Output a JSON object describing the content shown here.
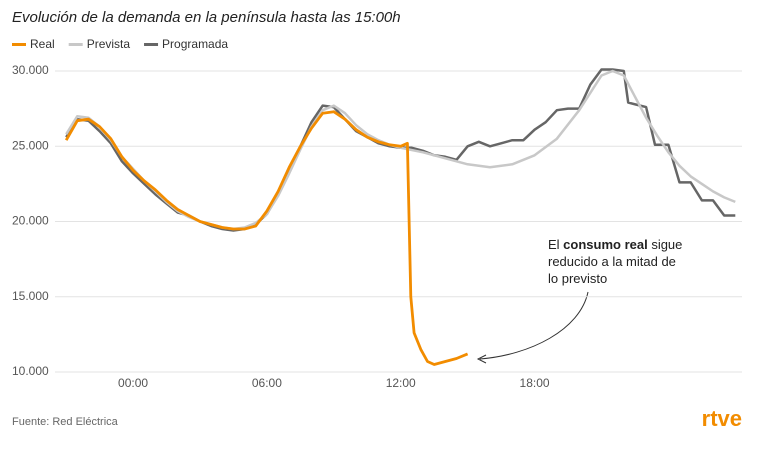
{
  "chart_data": {
    "type": "line",
    "title": "Evolución de la demanda en la península hasta las 15:00h",
    "series": [
      {
        "name": "Real",
        "color": "#f28c00",
        "x": [
          -3,
          -2.5,
          -2,
          -1.5,
          -1,
          -0.5,
          0,
          0.5,
          1,
          1.5,
          2,
          2.5,
          3,
          3.5,
          4,
          4.5,
          5,
          5.5,
          6,
          6.5,
          7,
          7.5,
          8,
          8.5,
          9,
          9.5,
          10,
          10.5,
          11,
          11.5,
          12,
          12.3,
          12.45,
          12.6,
          12.9,
          13.2,
          13.5,
          14,
          14.5,
          15
        ],
        "values": [
          25400,
          26700,
          26800,
          26300,
          25500,
          24300,
          23400,
          22700,
          22100,
          21400,
          20800,
          20400,
          20000,
          19800,
          19600,
          19500,
          19500,
          19700,
          20700,
          22000,
          23600,
          25000,
          26200,
          27200,
          27300,
          26800,
          26100,
          25600,
          25300,
          25100,
          25000,
          25200,
          15000,
          12600,
          11500,
          10700,
          10500,
          10700,
          10900,
          11200
        ]
      },
      {
        "name": "Prevista",
        "color": "#c8c8c8",
        "x": [
          -3,
          -2.5,
          -2,
          -1.5,
          -1,
          -0.5,
          0,
          0.5,
          1,
          1.5,
          2,
          2.5,
          3,
          3.5,
          4,
          4.5,
          5,
          5.5,
          6,
          6.5,
          7,
          7.5,
          8,
          8.5,
          9,
          9.5,
          10,
          10.5,
          11,
          11.5,
          12,
          13,
          14,
          15,
          16,
          17,
          18,
          19,
          20,
          21,
          21.5,
          22,
          22.5,
          23,
          23.5,
          24,
          24.5,
          25,
          25.5,
          26,
          26.5,
          27
        ],
        "values": [
          25800,
          27000,
          26900,
          26300,
          25400,
          24300,
          23500,
          22700,
          22000,
          21300,
          20700,
          20300,
          20000,
          19800,
          19600,
          19500,
          19600,
          19900,
          20500,
          21700,
          23200,
          24800,
          26300,
          27400,
          27700,
          27200,
          26400,
          25800,
          25400,
          25100,
          24900,
          24600,
          24200,
          23800,
          23600,
          23800,
          24400,
          25500,
          27400,
          29700,
          30000,
          29700,
          28300,
          26900,
          25700,
          24600,
          23700,
          23000,
          22500,
          22000,
          21600,
          21300
        ]
      },
      {
        "name": "Programada",
        "color": "#666666",
        "x": [
          -3,
          -2.5,
          -2,
          -1.5,
          -1,
          -0.5,
          0,
          0.5,
          1,
          1.5,
          2,
          2.5,
          3,
          3.5,
          4,
          4.5,
          5,
          5.5,
          6,
          6.5,
          7,
          7.5,
          8,
          8.5,
          9,
          9.5,
          10,
          10.5,
          11,
          11.5,
          12,
          12.5,
          13,
          13.5,
          14,
          14.5,
          15,
          15.5,
          16,
          16.5,
          17,
          17.5,
          18,
          18.5,
          19,
          19.5,
          20,
          20.5,
          21,
          21.5,
          22,
          22.2,
          23,
          23.4,
          24,
          24.5,
          25,
          25.5,
          26,
          26.5,
          27
        ],
        "values": [
          25600,
          26800,
          26700,
          26000,
          25200,
          24000,
          23200,
          22500,
          21800,
          21200,
          20600,
          20400,
          20000,
          19700,
          19500,
          19400,
          19500,
          19800,
          20500,
          21800,
          23400,
          25000,
          26600,
          27700,
          27600,
          26800,
          26000,
          25600,
          25200,
          25000,
          24900,
          24900,
          24700,
          24400,
          24300,
          24100,
          25000,
          25300,
          25000,
          25200,
          25400,
          25400,
          26100,
          26600,
          27400,
          27500,
          27500,
          29100,
          30100,
          30100,
          30000,
          27900,
          27600,
          25100,
          25100,
          22600,
          22600,
          21400,
          21400,
          20400,
          20400
        ]
      }
    ],
    "xlim": [
      -3.5,
      27.3
    ],
    "xticks": [
      {
        "value": 0,
        "label": "00:00"
      },
      {
        "value": 6,
        "label": "06:00"
      },
      {
        "value": 12,
        "label": "12:00"
      },
      {
        "value": 18,
        "label": "18:00"
      }
    ],
    "ylim": [
      10000,
      30500
    ],
    "yticks": [
      {
        "value": 10000,
        "label": "10.000"
      },
      {
        "value": 15000,
        "label": "15.000"
      },
      {
        "value": 20000,
        "label": "20.000"
      },
      {
        "value": 25000,
        "label": "25.000"
      },
      {
        "value": 30000,
        "label": "30.000"
      }
    ],
    "grid": true,
    "annotation": [
      [
        "El ",
        "consumo real",
        " sigue"
      ],
      [
        "reducido a la mitad de"
      ],
      [
        "lo previsto"
      ]
    ],
    "source": "Fuente: Red Eléctrica",
    "logo": "rtve"
  }
}
